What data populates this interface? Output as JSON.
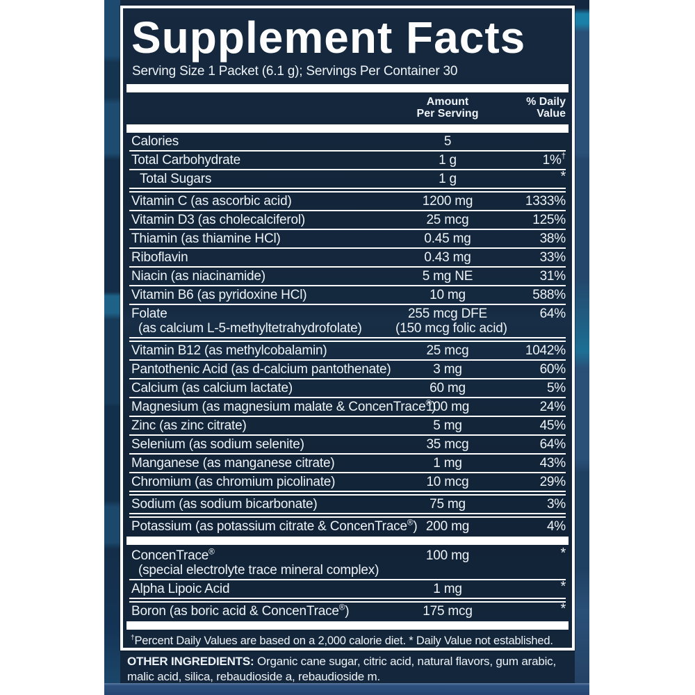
{
  "colors": {
    "page_bg": "#ffffff",
    "label_bg": "#14273e",
    "label_border": "#ffffff",
    "text": "#eef3f8",
    "edge_blue": "#2a5078",
    "edge_teal": "#1a80a8",
    "bottom_band": "#2c4e7c"
  },
  "label": {
    "title": "Supplement Facts",
    "serving_line": "Serving Size 1 Packet (6.1 g); Servings Per Container 30",
    "columns": {
      "amount_line1": "Amount",
      "amount_line2": "Per Serving",
      "dv_line1": "% Daily",
      "dv_line2": "Value"
    },
    "rows": [
      {
        "name": "Calories",
        "amount": "5",
        "dv": "",
        "sep": "line"
      },
      {
        "name": "Total Carbohydrate",
        "amount": "1 g",
        "dv": "1%†",
        "sep": "line"
      },
      {
        "name": "Total Sugars",
        "indent": true,
        "amount": "1 g",
        "dv": "*",
        "sep": "double"
      },
      {
        "name": "Vitamin C (as ascorbic acid)",
        "amount": "1200 mg",
        "dv": "1333%",
        "sep": "line"
      },
      {
        "name": "Vitamin D3 (as cholecalciferol)",
        "amount": "25 mcg",
        "dv": "125%",
        "sep": "line"
      },
      {
        "name": "Thiamin (as thiamine HCl)",
        "amount": "0.45 mg",
        "dv": "38%",
        "sep": "line"
      },
      {
        "name": "Riboflavin",
        "amount": "0.43 mg",
        "dv": "33%",
        "sep": "line"
      },
      {
        "name": "Niacin (as niacinamide)",
        "amount": "5 mg NE",
        "dv": "31%",
        "sep": "line"
      },
      {
        "name": "Vitamin B6 (as pyridoxine HCl)",
        "amount": "10 mg",
        "dv": "588%",
        "sep": "line"
      },
      {
        "name": "Folate",
        "name2": "(as calcium L-5-methyltetrahydrofolate)",
        "amount": "255 mcg DFE",
        "amount2": "(150 mcg folic acid)",
        "dv": "64%",
        "sep": "double"
      },
      {
        "name": "Vitamin B12 (as methylcobalamin)",
        "amount": "25 mcg",
        "dv": "1042%",
        "sep": "line"
      },
      {
        "name": "Pantothenic Acid (as d-calcium pantothenate)",
        "amount": "3 mg",
        "dv": "60%",
        "sep": "line"
      },
      {
        "name": "Calcium (as calcium lactate)",
        "amount": "60 mg",
        "dv": "5%",
        "sep": "line"
      },
      {
        "name": "Magnesium (as magnesium malate & ConcenTrace®)",
        "amount": "100 mg",
        "dv": "24%",
        "sep": "line"
      },
      {
        "name": "Zinc (as zinc citrate)",
        "amount": "5 mg",
        "dv": "45%",
        "sep": "line"
      },
      {
        "name": "Selenium (as sodium selenite)",
        "amount": "35 mcg",
        "dv": "64%",
        "sep": "line"
      },
      {
        "name": "Manganese (as manganese citrate)",
        "amount": "1 mg",
        "dv": "43%",
        "sep": "line"
      },
      {
        "name": "Chromium (as chromium picolinate)",
        "amount": "10 mcg",
        "dv": "29%",
        "sep": "double"
      },
      {
        "name": "Sodium (as sodium bicarbonate)",
        "amount": "75 mg",
        "dv": "3%",
        "sep": "double"
      },
      {
        "name": "Potassium (as potassium citrate & ConcenTrace®)",
        "amount": "200 mg",
        "dv": "4%",
        "sep": "bar"
      },
      {
        "name": "ConcenTrace®",
        "name2": "(special electrolyte trace mineral complex)",
        "amount": "100 mg",
        "dv": "*",
        "sep": "line"
      },
      {
        "name": "Alpha Lipoic Acid",
        "amount": "1 mg",
        "dv": "*",
        "sep": "double"
      },
      {
        "name": "Boron (as boric acid & ConcenTrace®)",
        "amount": "175 mcg",
        "dv": "*",
        "sep": "bar"
      }
    ],
    "footnote": "†Percent Daily Values are based on a 2,000 calorie diet. * Daily Value not established."
  },
  "other_ingredients": {
    "label": "OTHER INGREDIENTS:",
    "text": "Organic cane sugar, citric acid, natural flavors, gum arabic, malic acid, silica, rebaudioside a, rebaudioside m."
  }
}
